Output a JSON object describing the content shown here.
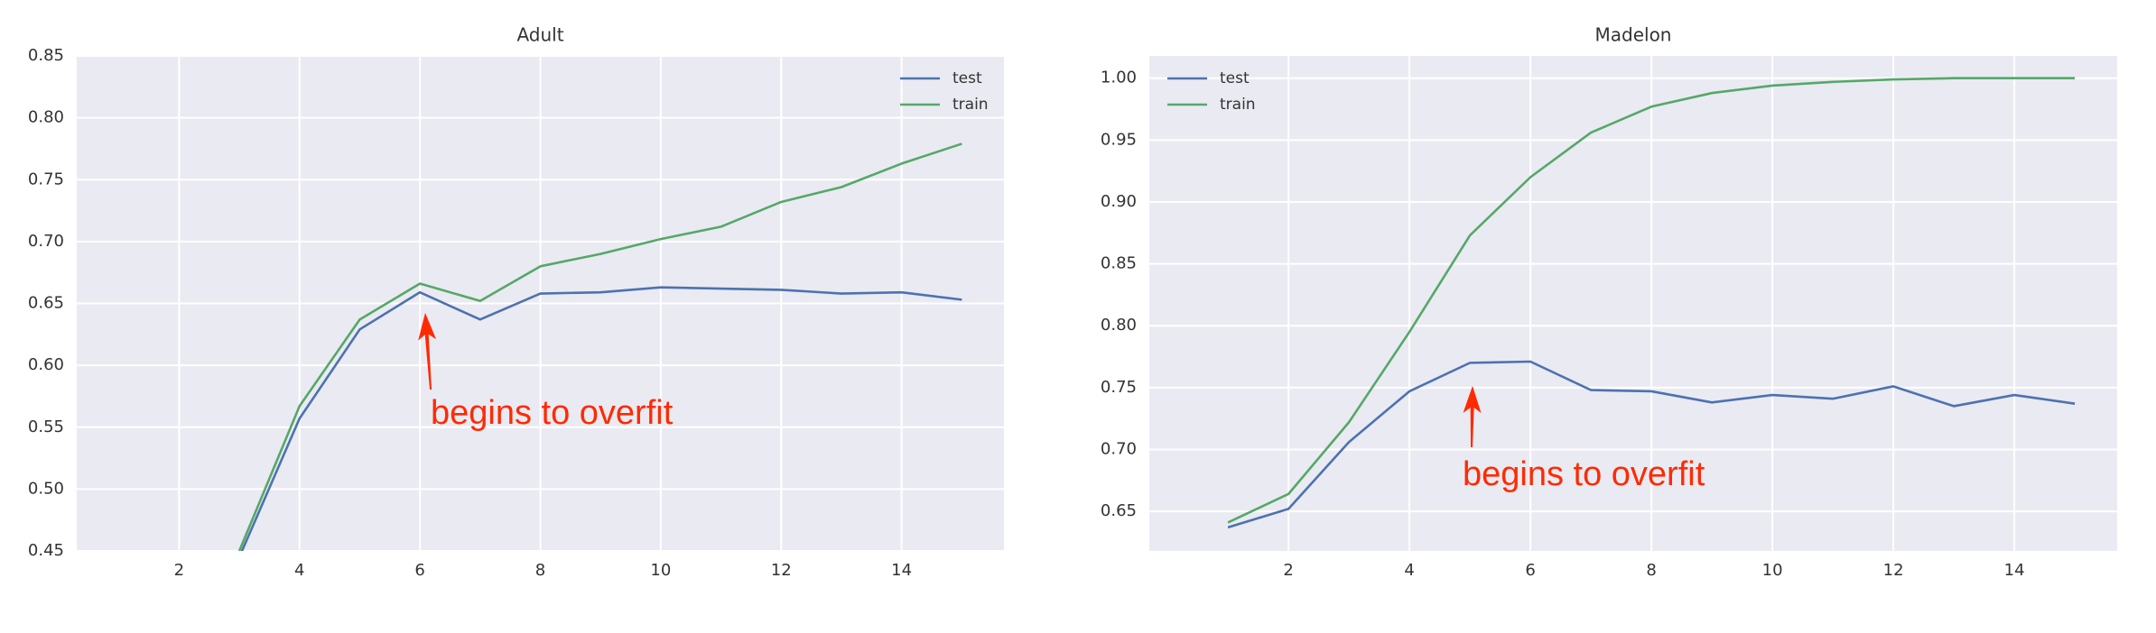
{
  "chart_data": [
    {
      "type": "line",
      "title": "Adult",
      "x": [
        1,
        2,
        3,
        4,
        5,
        6,
        7,
        8,
        9,
        10,
        11,
        12,
        13,
        14,
        15
      ],
      "series": [
        {
          "name": "test",
          "color": "#4c72b0",
          "values": [
            null,
            null,
            0.445,
            0.557,
            0.629,
            0.659,
            0.637,
            0.658,
            0.659,
            0.663,
            0.662,
            0.661,
            0.658,
            0.659,
            0.653
          ]
        },
        {
          "name": "train",
          "color": "#55a868",
          "values": [
            null,
            null,
            0.45,
            0.567,
            0.637,
            0.666,
            0.652,
            0.68,
            0.69,
            0.702,
            0.712,
            0.732,
            0.744,
            0.763,
            0.779
          ]
        }
      ],
      "xlim": [
        0.3,
        15.7
      ],
      "xticks": [
        2,
        4,
        6,
        8,
        10,
        12,
        14
      ],
      "ylim": [
        0.45,
        0.85
      ],
      "yticks": [
        0.45,
        {
          "value": 0.5,
          "label": "0.50"
        },
        0.55,
        {
          "value": 0.6,
          "label": "0.60"
        },
        0.65,
        {
          "value": 0.7,
          "label": "0.70"
        },
        0.75,
        {
          "value": 0.8,
          "label": "0.80"
        },
        0.85
      ],
      "grid": true,
      "legend": "upper right",
      "annotations": [
        {
          "text": "begins to overfit"
        }
      ]
    },
    {
      "type": "line",
      "title": "Madelon",
      "x": [
        1,
        2,
        3,
        4,
        5,
        6,
        7,
        8,
        9,
        10,
        11,
        12,
        13,
        14,
        15
      ],
      "series": [
        {
          "name": "test",
          "color": "#4c72b0",
          "values": [
            0.637,
            0.652,
            0.706,
            0.747,
            0.77,
            0.771,
            0.748,
            0.747,
            0.738,
            0.744,
            0.741,
            0.751,
            0.735,
            0.744,
            0.737
          ]
        },
        {
          "name": "train",
          "color": "#55a868",
          "values": [
            0.641,
            0.664,
            0.722,
            0.795,
            0.873,
            0.92,
            0.956,
            0.977,
            0.988,
            0.994,
            0.997,
            0.999,
            1.0,
            1.0,
            1.0
          ]
        }
      ],
      "xlim": [
        -0.3,
        15.7
      ],
      "xticks": [
        2,
        4,
        6,
        8,
        10,
        12,
        14
      ],
      "ylim": [
        0.618,
        1.018
      ],
      "yticks": [
        0.65,
        {
          "value": 0.7,
          "label": "0.70"
        },
        0.75,
        {
          "value": 0.8,
          "label": "0.80"
        },
        0.85,
        {
          "value": 0.9,
          "label": "0.90"
        },
        0.95,
        {
          "value": 1.0,
          "label": "1.00"
        }
      ],
      "grid": true,
      "legend": "upper left",
      "annotations": [
        {
          "text": "begins to overfit"
        }
      ]
    }
  ]
}
